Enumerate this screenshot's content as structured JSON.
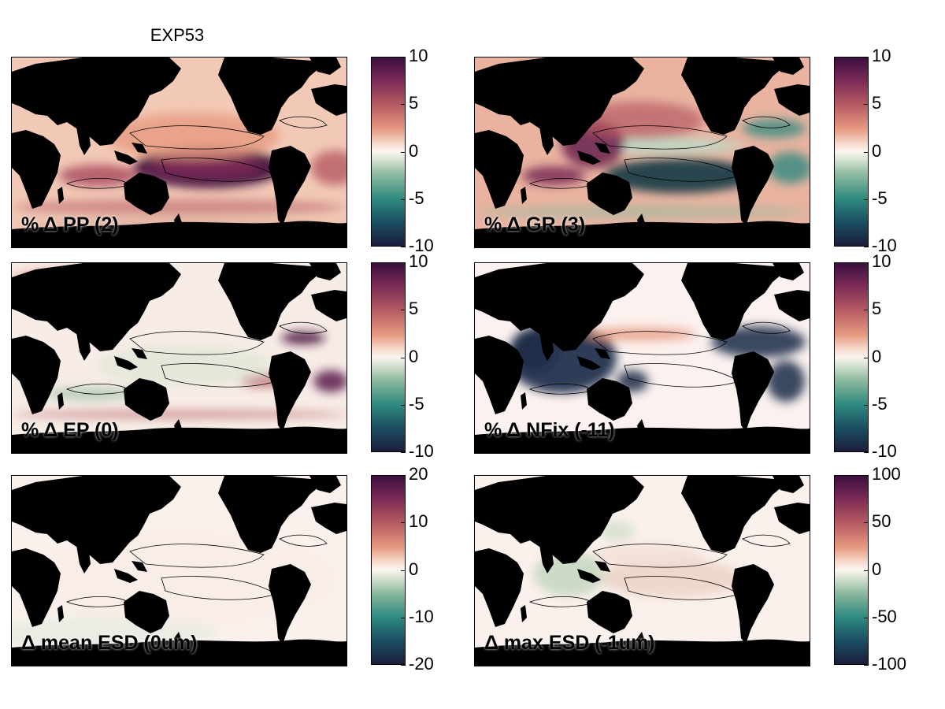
{
  "figure_title": "EXP53",
  "colormap": {
    "name": "diverging-curl",
    "colors": [
      "#1b1d3a",
      "#2e8a7f",
      "#fbf5f0",
      "#e79a80",
      "#3b0f3f"
    ]
  },
  "land_color": "#000000",
  "panels": [
    {
      "id": "pp",
      "label": "% Δ PP (2)",
      "cbar_ticks": [
        "10",
        "5",
        "0",
        "-5",
        "-10"
      ],
      "pattern": "pp"
    },
    {
      "id": "gr",
      "label": "% Δ GR (3)",
      "cbar_ticks": [
        "10",
        "5",
        "0",
        "-5",
        "-10"
      ],
      "pattern": "gr"
    },
    {
      "id": "ep",
      "label": "% Δ EP (0)",
      "cbar_ticks": [
        "10",
        "5",
        "0",
        "-5",
        "-10"
      ],
      "pattern": "ep"
    },
    {
      "id": "nfix",
      "label": "% Δ NFix (-11)",
      "cbar_ticks": [
        "10",
        "5",
        "0",
        "-5",
        "-10"
      ],
      "pattern": "nfix"
    },
    {
      "id": "meanesd",
      "label": "Δ mean ESD (0um)",
      "cbar_ticks": [
        "20",
        "10",
        "0",
        "-10",
        "-20"
      ],
      "pattern": "meanesd"
    },
    {
      "id": "maxesd",
      "label": "Δ max ESD (-1um)",
      "cbar_ticks": [
        "100",
        "50",
        "0",
        "-50",
        "-100"
      ],
      "pattern": "maxesd"
    }
  ]
}
